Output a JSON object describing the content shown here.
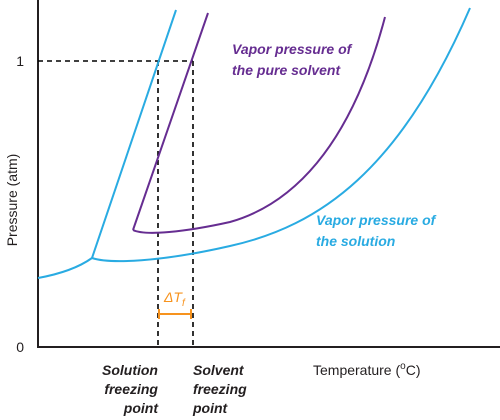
{
  "axes": {
    "ylabel": "Pressure (atm)",
    "xlabel_prefix": "Temperature (",
    "xlabel_superscript": "o",
    "xlabel_suffix": "C)",
    "ytick_zero": "0",
    "ytick_one": "1"
  },
  "labels": {
    "pure_solvent_line1": "Vapor pressure of",
    "pure_solvent_line2": "the pure solvent",
    "solution_line1": "Vapor pressure of",
    "solution_line2": "the solution",
    "delta_main": "ΔT",
    "delta_subscript": "f",
    "solution_fp_line1": "Solution",
    "solution_fp_line2": "freezing",
    "solution_fp_line3": "point",
    "solvent_fp_line1": "Solvent",
    "solvent_fp_line2": "freezing",
    "solvent_fp_line3": "point"
  },
  "colors": {
    "solution": "#29abe2",
    "solvent": "#662d91",
    "delta": "#f7931e",
    "axis": "#231f20"
  }
}
